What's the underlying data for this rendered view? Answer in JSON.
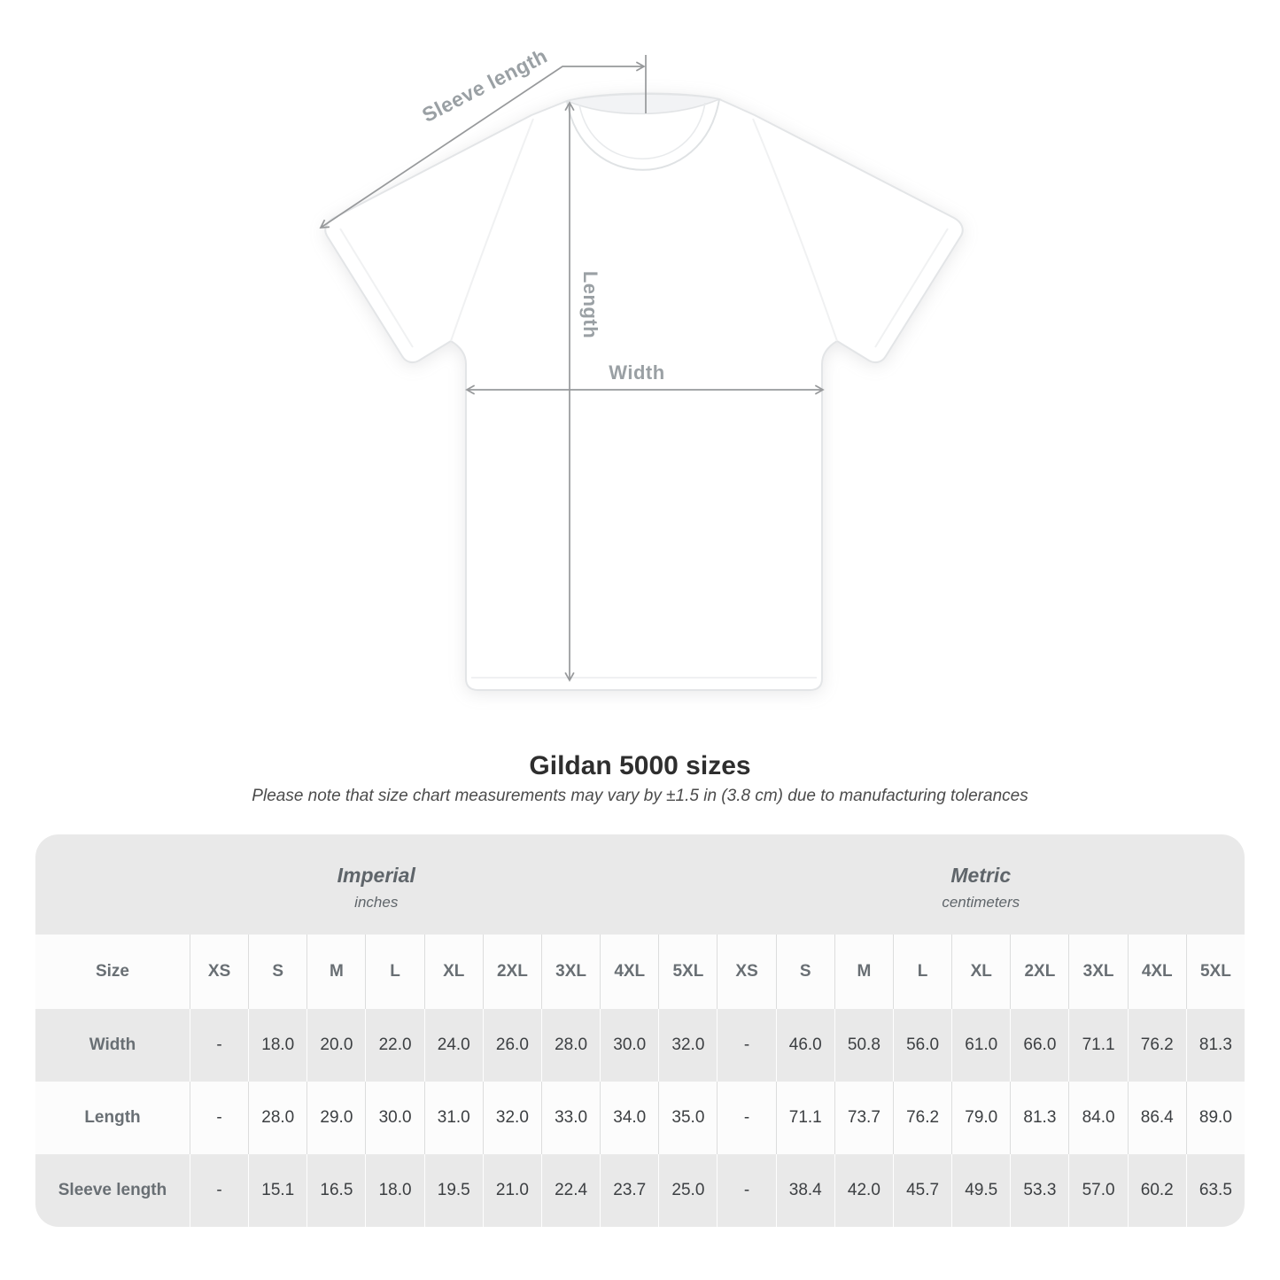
{
  "diagram": {
    "labels": {
      "sleeve_length": "Sleeve length",
      "length": "Length",
      "width": "Width"
    },
    "arrow_color": "#97999b",
    "label_color": "#9aa0a4"
  },
  "chart_data": {
    "type": "table",
    "title": "Gildan 5000 sizes",
    "subtitle": "Please note that size chart measurements may vary by ±1.5 in (3.8 cm) due to manufacturing tolerances",
    "sections": [
      {
        "name": "Imperial",
        "unit": "inches"
      },
      {
        "name": "Metric",
        "unit": "centimeters"
      }
    ],
    "corner_label": "Size",
    "size_columns": [
      "XS",
      "S",
      "M",
      "L",
      "XL",
      "2XL",
      "3XL",
      "4XL",
      "5XL"
    ],
    "rows": [
      {
        "label": "Width",
        "imperial": [
          "-",
          "18.0",
          "20.0",
          "22.0",
          "24.0",
          "26.0",
          "28.0",
          "30.0",
          "32.0"
        ],
        "metric": [
          "-",
          "46.0",
          "50.8",
          "56.0",
          "61.0",
          "66.0",
          "71.1",
          "76.2",
          "81.3"
        ]
      },
      {
        "label": "Length",
        "imperial": [
          "-",
          "28.0",
          "29.0",
          "30.0",
          "31.0",
          "32.0",
          "33.0",
          "34.0",
          "35.0"
        ],
        "metric": [
          "-",
          "71.1",
          "73.7",
          "76.2",
          "79.0",
          "81.3",
          "84.0",
          "86.4",
          "89.0"
        ]
      },
      {
        "label": "Sleeve length",
        "imperial": [
          "-",
          "15.1",
          "16.5",
          "18.0",
          "19.5",
          "21.0",
          "22.4",
          "23.7",
          "25.0"
        ],
        "metric": [
          "-",
          "38.4",
          "42.0",
          "45.7",
          "49.5",
          "53.3",
          "57.0",
          "60.2",
          "63.5"
        ]
      }
    ]
  },
  "colors": {
    "panel_gray": "#e9e9e9",
    "row_white": "#fcfcfc",
    "header_text": "#696f74",
    "value_text": "#3c3f42",
    "title_text": "#2e2e2e",
    "subtitle_text": "#4b4b4b"
  }
}
